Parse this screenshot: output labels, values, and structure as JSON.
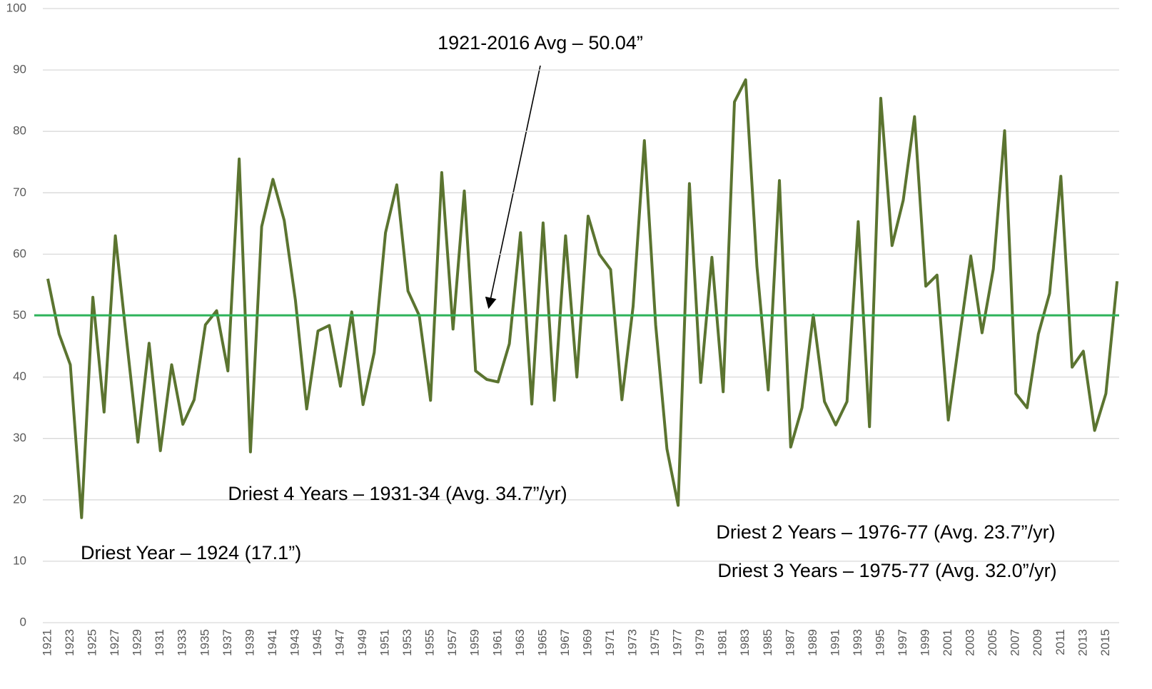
{
  "chart_data": {
    "type": "line",
    "categories": [
      "1921",
      null,
      "1923",
      null,
      "1925",
      null,
      "1927",
      null,
      "1929",
      null,
      "1931",
      null,
      "1933",
      null,
      "1935",
      null,
      "1937",
      null,
      "1939",
      null,
      "1941",
      null,
      "1943",
      null,
      "1945",
      null,
      "1947",
      null,
      "1949",
      null,
      "1951",
      null,
      "1953",
      null,
      "1955",
      null,
      "1957",
      null,
      "1959",
      null,
      "1961",
      null,
      "1963",
      null,
      "1965",
      null,
      "1967",
      null,
      "1969",
      null,
      "1971",
      null,
      "1973",
      null,
      "1975",
      null,
      "1977",
      null,
      "1979",
      null,
      "1981",
      null,
      "1983",
      null,
      "1985",
      null,
      "1987",
      null,
      "1989",
      null,
      "1991",
      null,
      "1993",
      null,
      "1995",
      null,
      "1997",
      null,
      "1999",
      null,
      "2001",
      null,
      "2003",
      null,
      "2005",
      null,
      "2007",
      null,
      "2009",
      null,
      "2011",
      null,
      "2013",
      null,
      "2015",
      null
    ],
    "series": [
      {
        "color": "#5b7430",
        "values": [
          56,
          47,
          42,
          17.1,
          53,
          34.3,
          63,
          46,
          29.4,
          45.5,
          28,
          42,
          32.3,
          36.3,
          48.5,
          50.8,
          41,
          75.5,
          27.8,
          64.5,
          72.2,
          65.5,
          52.5,
          34.8,
          47.5,
          48.4,
          38.5,
          50.6,
          35.5,
          44,
          63.5,
          71.3,
          54,
          50,
          36.2,
          73.3,
          47.8,
          70.3,
          41,
          39.6,
          39.2,
          45.4,
          63.5,
          35.6,
          65.1,
          36.2,
          63,
          40,
          66.2,
          60,
          57.5,
          36.3,
          51.5,
          78.5,
          48.5,
          28.3,
          19.1,
          71.5,
          39.1,
          59.5,
          37.6,
          84.8,
          88.4,
          58,
          37.9,
          72,
          28.6,
          35,
          50.1,
          36,
          32.2,
          36,
          65.3,
          31.9,
          85.4,
          61.4,
          68.8,
          82.4,
          54.8,
          56.6,
          33,
          46.5,
          59.7,
          47.2,
          57.6,
          80.1,
          37.3,
          35,
          47,
          53.6,
          72.7,
          41.6,
          44.2,
          31.3,
          37.3,
          55.6
        ]
      }
    ],
    "reference_line": {
      "value": 50.04,
      "color": "#2eb35a"
    },
    "ylim": [
      0,
      100
    ],
    "yticks": [
      0,
      10,
      20,
      30,
      40,
      50,
      60,
      70,
      80,
      90,
      100
    ],
    "grid": true,
    "annotations": [
      "1921-2016 Avg – 50.04”",
      "Driest 4 Years – 1931-34 (Avg. 34.7”/yr)",
      "Driest Year – 1924 (17.1”)",
      "Driest 2 Years – 1976-77 (Avg. 23.7”/yr)",
      "Driest 3 Years – 1975-77 (Avg. 32.0”/yr)"
    ]
  }
}
